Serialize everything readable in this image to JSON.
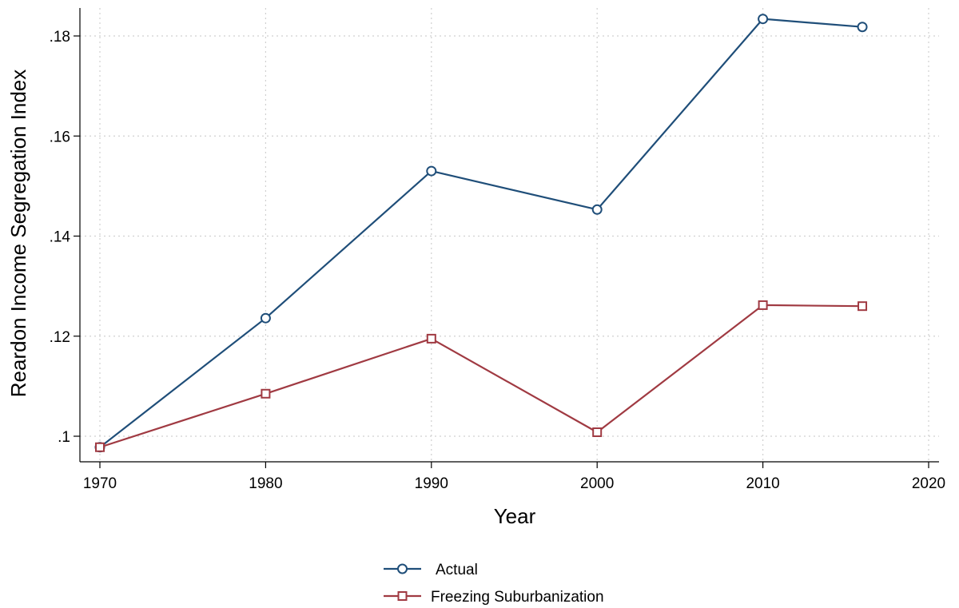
{
  "chart_data": {
    "type": "line",
    "title": "",
    "xlabel": "Year",
    "ylabel": "Reardon Income Segregation Index",
    "xlim": [
      1970,
      2020
    ],
    "ylim": [
      0.1,
      0.18
    ],
    "x_ticks": [
      1970,
      1980,
      1990,
      2000,
      2010,
      2020
    ],
    "x_tick_labels": [
      "1970",
      "1980",
      "1990",
      "2000",
      "2010",
      "2020"
    ],
    "y_ticks": [
      0.1,
      0.12,
      0.14,
      0.16,
      0.18
    ],
    "y_tick_labels": [
      ".1",
      ".12",
      ".14",
      ".16",
      ".18"
    ],
    "grid": true,
    "legend_position": "bottom",
    "series": [
      {
        "name": "Actual",
        "marker": "circle",
        "color": "#1f4e79",
        "x": [
          1970,
          1980,
          1990,
          2000,
          2010,
          2016
        ],
        "values": [
          0.0978,
          0.1236,
          0.153,
          0.1453,
          0.1834,
          0.1818
        ]
      },
      {
        "name": "Freezing Suburbanization",
        "marker": "square",
        "color": "#a03a42",
        "x": [
          1970,
          1980,
          1990,
          2000,
          2010,
          2016
        ],
        "values": [
          0.0978,
          0.1085,
          0.1195,
          0.1008,
          0.1262,
          0.126
        ]
      }
    ]
  }
}
